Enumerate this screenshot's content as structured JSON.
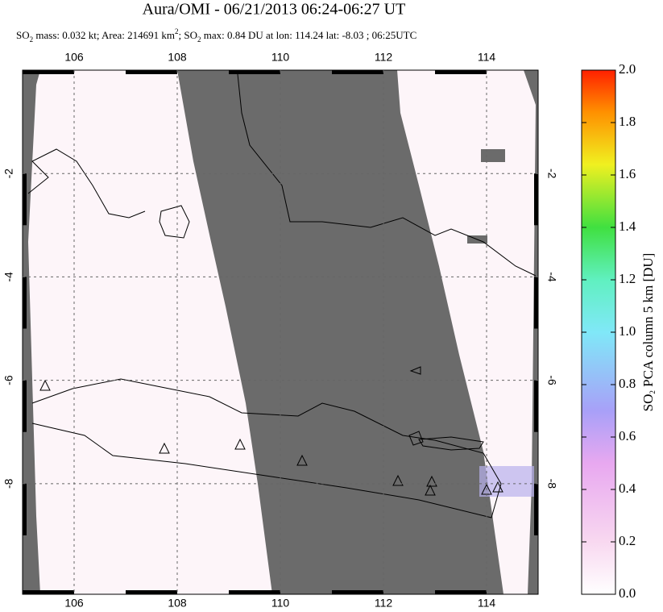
{
  "header": {
    "title": "Aura/OMI - 06/21/2013 06:24-06:27 UT",
    "subtitle": [
      "SO",
      "2",
      " mass: 0.032 kt; Area: 214691 km",
      "2",
      "; SO",
      "2",
      " max: 0.84 DU at lon: 114.24 lat: -8.03 ; 06:25UTC"
    ]
  },
  "map": {
    "xlim": [
      105,
      115
    ],
    "ylim": [
      -10.14,
      0
    ],
    "xticks": [
      106,
      108,
      110,
      112,
      114
    ],
    "yticks": [
      -2,
      -4,
      -6,
      -8
    ]
  },
  "colorbar": {
    "label": [
      "SO",
      "2",
      " PCA column 5 km [DU]"
    ],
    "lim": [
      0,
      2
    ],
    "ticks": [
      {
        "value": 0,
        "label": "0.0"
      },
      0.2,
      0.4,
      0.6,
      0.8,
      {
        "value": 1,
        "label": "1.0"
      },
      1.2,
      1.4,
      1.6,
      1.8,
      {
        "value": 2,
        "label": "2.0"
      }
    ]
  }
}
